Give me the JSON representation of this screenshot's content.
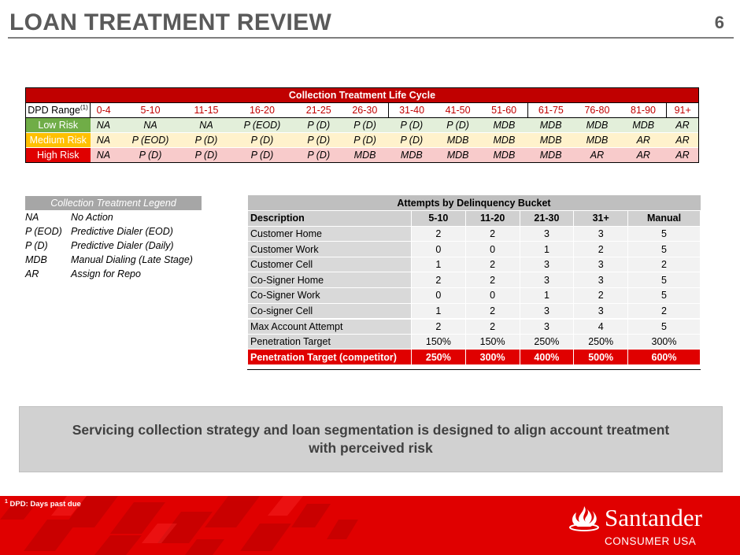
{
  "header": {
    "title": "LOAN TREATMENT REVIEW",
    "page_number": "6"
  },
  "life_cycle": {
    "title": "Collection Treatment Life Cycle",
    "dpd_label": "DPD Range",
    "dpd_footnote_marker": "(1)",
    "ranges": [
      "0-4",
      "5-10",
      "11-15",
      "16-20",
      "21-25",
      "26-30",
      "31-40",
      "41-50",
      "51-60",
      "61-75",
      "76-80",
      "81-90",
      "91+"
    ],
    "rows": [
      {
        "label": "Low Risk",
        "values": [
          "NA",
          "NA",
          "NA",
          "P (EOD)",
          "P (D)",
          "P (D)",
          "P (D)",
          "P (D)",
          "MDB",
          "MDB",
          "MDB",
          "MDB",
          "AR"
        ]
      },
      {
        "label": "Medium Risk",
        "values": [
          "NA",
          "P (EOD)",
          "P (D)",
          "P (D)",
          "P (D)",
          "P (D)",
          "P (D)",
          "MDB",
          "MDB",
          "MDB",
          "MDB",
          "AR",
          "AR"
        ]
      },
      {
        "label": "High Risk",
        "values": [
          "NA",
          "P (D)",
          "P (D)",
          "P (D)",
          "P (D)",
          "MDB",
          "MDB",
          "MDB",
          "MDB",
          "MDB",
          "AR",
          "AR",
          "AR"
        ]
      }
    ]
  },
  "legend": {
    "title": "Collection Treatment Legend",
    "items": [
      {
        "code": "NA",
        "meaning": "No Action"
      },
      {
        "code": "P (EOD)",
        "meaning": "Predictive Dialer (EOD)"
      },
      {
        "code": "P (D)",
        "meaning": "Predictive Dialer (Daily)"
      },
      {
        "code": "MDB",
        "meaning": "Manual Dialing (Late Stage)"
      },
      {
        "code": "AR",
        "meaning": "Assign for Repo"
      }
    ]
  },
  "attempts": {
    "title": "Attempts by Delinquency Bucket",
    "columns": [
      "Description",
      "5-10",
      "11-20",
      "21-30",
      "31+",
      "Manual"
    ],
    "rows": [
      {
        "desc": "Customer Home",
        "values": [
          "2",
          "2",
          "3",
          "3",
          "5"
        ]
      },
      {
        "desc": "Customer Work",
        "values": [
          "0",
          "0",
          "1",
          "2",
          "5"
        ]
      },
      {
        "desc": "Customer Cell",
        "values": [
          "1",
          "2",
          "3",
          "3",
          "2"
        ]
      },
      {
        "desc": "Co-Signer Home",
        "values": [
          "2",
          "2",
          "3",
          "3",
          "5"
        ]
      },
      {
        "desc": "Co-Signer Work",
        "values": [
          "0",
          "0",
          "1",
          "2",
          "5"
        ]
      },
      {
        "desc": "Co-signer Cell",
        "values": [
          "1",
          "2",
          "3",
          "3",
          "2"
        ]
      }
    ],
    "max_attempt": {
      "desc": "Max Account Attempt",
      "values": [
        "2",
        "2",
        "3",
        "4",
        "5"
      ]
    },
    "penetration": {
      "desc": "Penetration Target",
      "values": [
        "150%",
        "150%",
        "250%",
        "250%",
        "300%"
      ]
    },
    "competitor": {
      "desc": "Penetration Target (competitor)",
      "values": [
        "250%",
        "300%",
        "400%",
        "500%",
        "600%"
      ]
    }
  },
  "callout": {
    "line1": "Servicing collection strategy and loan segmentation is designed to align account treatment",
    "line2": "with perceived risk"
  },
  "footer": {
    "footnote_marker": "1",
    "footnote": "DPD: Days past due",
    "brand": "Santander",
    "brand_sub": "CONSUMER USA"
  }
}
